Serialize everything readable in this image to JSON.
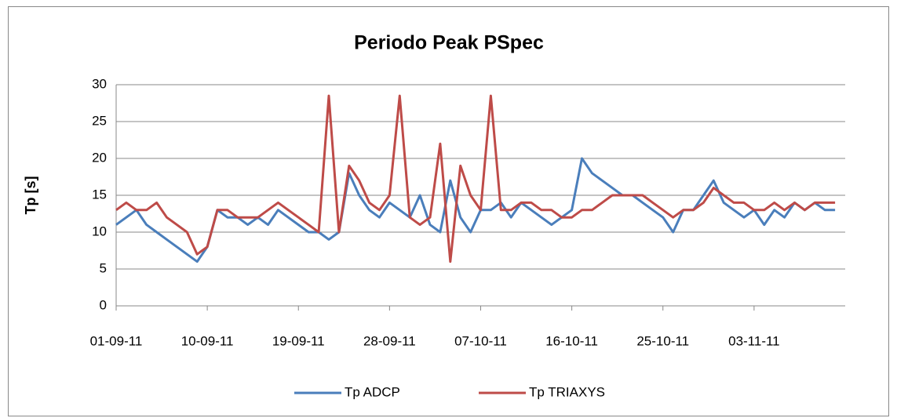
{
  "chart_data": {
    "type": "line",
    "title": "Periodo Peak PSpec",
    "y_label": "Tp [s]",
    "x": [
      "01-09-11",
      "02-09-11",
      "03-09-11",
      "04-09-11",
      "05-09-11",
      "06-09-11",
      "07-09-11",
      "08-09-11",
      "09-09-11",
      "10-09-11",
      "11-09-11",
      "12-09-11",
      "13-09-11",
      "14-09-11",
      "15-09-11",
      "16-09-11",
      "17-09-11",
      "18-09-11",
      "19-09-11",
      "20-09-11",
      "21-09-11",
      "22-09-11",
      "23-09-11",
      "24-09-11",
      "25-09-11",
      "26-09-11",
      "27-09-11",
      "28-09-11",
      "29-09-11",
      "30-09-11",
      "01-10-11",
      "02-10-11",
      "03-10-11",
      "04-10-11",
      "05-10-11",
      "06-10-11",
      "07-10-11",
      "08-10-11",
      "09-10-11",
      "10-10-11",
      "11-10-11",
      "12-10-11",
      "13-10-11",
      "14-10-11",
      "15-10-11",
      "16-10-11",
      "17-10-11",
      "18-10-11",
      "19-10-11",
      "20-10-11",
      "21-10-11",
      "22-10-11",
      "23-10-11",
      "24-10-11",
      "25-10-11",
      "26-10-11",
      "27-10-11",
      "28-10-11",
      "29-10-11",
      "30-10-11",
      "31-10-11",
      "01-11-11",
      "02-11-11",
      "03-11-11",
      "04-11-11",
      "05-11-11",
      "06-11-11",
      "07-11-11",
      "08-11-11",
      "09-11-11",
      "10-11-11",
      "11-11-11"
    ],
    "series": [
      {
        "name": "Tp ADCP",
        "color": "#4a7ebb",
        "values": [
          11,
          12,
          13,
          11,
          10,
          9,
          8,
          7,
          6,
          8,
          13,
          12,
          12,
          11,
          12,
          11,
          13,
          12,
          11,
          10,
          10,
          9,
          10,
          18,
          15,
          13,
          12,
          14,
          13,
          12,
          15,
          11,
          10,
          17,
          12,
          10,
          13,
          13,
          14,
          12,
          14,
          13,
          12,
          11,
          12,
          13,
          20,
          18,
          17,
          16,
          15,
          15,
          14,
          13,
          12,
          10,
          13,
          13,
          15,
          17,
          14,
          13,
          12,
          13,
          11,
          13,
          12,
          14,
          13,
          14,
          13,
          13
        ]
      },
      {
        "name": "Tp TRIAXYS",
        "color": "#be4b48",
        "values": [
          13,
          14,
          13,
          13,
          14,
          12,
          11,
          10,
          7,
          8,
          13,
          13,
          12,
          12,
          12,
          13,
          14,
          13,
          12,
          11,
          10,
          28.5,
          10,
          19,
          17,
          14,
          13,
          15,
          28.5,
          12,
          11,
          12,
          22,
          6,
          19,
          15,
          13,
          28.5,
          13,
          13,
          14,
          14,
          13,
          13,
          12,
          12,
          13,
          13,
          14,
          15,
          15,
          15,
          15,
          14,
          13,
          12,
          13,
          13,
          14,
          16,
          15,
          14,
          14,
          13,
          13,
          14,
          13,
          14,
          13,
          14,
          14,
          14
        ]
      }
    ],
    "xlim": [
      "01-09-11",
      "12-11-11"
    ],
    "xticks": [
      "01-09-11",
      "10-09-11",
      "19-09-11",
      "28-09-11",
      "07-10-11",
      "16-10-11",
      "25-10-11",
      "03-11-11"
    ],
    "ylim": [
      0,
      30
    ],
    "yticks": [
      0,
      5,
      10,
      15,
      20,
      25,
      30
    ],
    "grid": true,
    "legend": "bottom"
  }
}
